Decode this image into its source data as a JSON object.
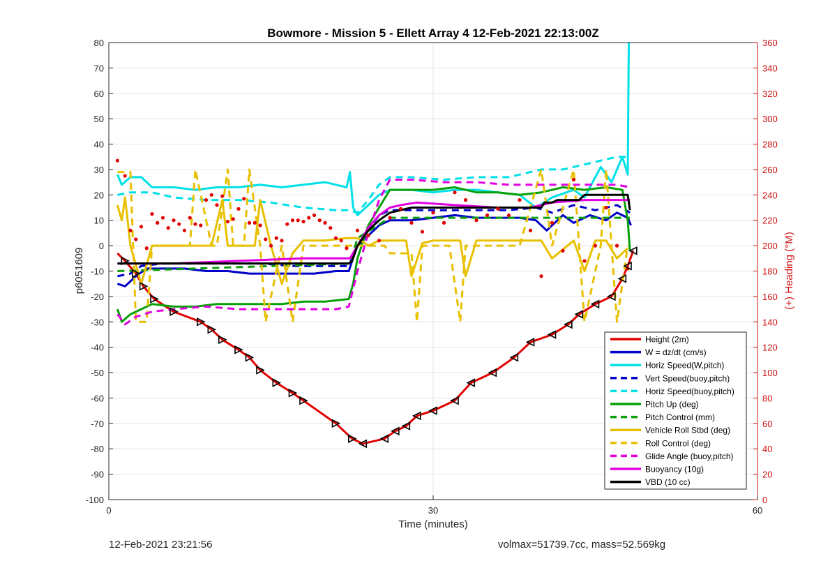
{
  "chart_data": {
    "type": "line",
    "title": "Bowmore - Mission 5 - Ellett Array 4 12-Feb-2021 22:13:00Z",
    "xlabel": "Time (minutes)",
    "ylabel": "p6051609",
    "ylabel_right": "(+) Heading (°M)",
    "xlim": [
      0,
      60
    ],
    "ylim": [
      -100,
      80
    ],
    "ylim_right": [
      0,
      360
    ],
    "xticks": [
      0,
      30,
      60
    ],
    "yticks": [
      80,
      70,
      60,
      50,
      40,
      30,
      20,
      10,
      0,
      -10,
      -20,
      -30,
      -40,
      -50,
      -60,
      -70,
      -80,
      -90,
      -100
    ],
    "yticks_right": [
      360,
      340,
      320,
      300,
      280,
      260,
      240,
      220,
      200,
      180,
      160,
      140,
      120,
      100,
      80,
      60,
      40,
      20,
      0
    ],
    "grid": true,
    "legend_position": "bottom-right",
    "colors": {
      "red": "#e00000",
      "blue": "#0000c8",
      "cyan": "#00e0e8",
      "green": "#08a008",
      "yellow": "#e8c000",
      "magenta": "#e000e0",
      "black": "#000000",
      "axis_right": "#d01010"
    },
    "series": [
      {
        "name": "Height (2m)",
        "color": "#e00000",
        "style": "solid",
        "marker": "triangle",
        "x": [
          0.8,
          1.5,
          2.5,
          3.2,
          4.2,
          6.0,
          8.5,
          9.5,
          10.5,
          12.0,
          13.0,
          14.0,
          15.5,
          17.0,
          18.0,
          21.0,
          22.5,
          23.5,
          25.5,
          26.5,
          27.5,
          28.5,
          30.0,
          32.0,
          33.5,
          35.5,
          37.5,
          39.0,
          41.0,
          42.5,
          43.5,
          45.0,
          46.5,
          47.5,
          48.0,
          48.5
        ],
        "y": [
          -3,
          -6,
          -11,
          -16,
          -21,
          -26,
          -30,
          -33,
          -37,
          -41,
          -44,
          -49,
          -54,
          -58,
          -61,
          -70,
          -76,
          -78,
          -76,
          -73,
          -71,
          -67,
          -65,
          -61,
          -54,
          -50,
          -44,
          -38,
          -35,
          -31,
          -27,
          -23,
          -20,
          -13,
          -8,
          -2
        ]
      },
      {
        "name": "W = dz/dt (cm/s)",
        "color": "#0000c8",
        "style": "solid",
        "x": [
          0.8,
          1.5,
          2.5,
          3.5,
          5.0,
          7.0,
          9.0,
          11.0,
          13.0,
          15.0,
          17.0,
          19.0,
          21.0,
          22.2,
          22.5,
          23.0,
          24.0,
          25.0,
          26.0,
          28.0,
          30.0,
          32.0,
          34.0,
          36.0,
          38.0,
          39.5,
          40.5,
          42.0,
          43.0,
          44.5,
          46.0,
          47.0,
          48.0,
          48.3
        ],
        "y": [
          -15,
          -16,
          -12,
          -9,
          -9,
          -9,
          -10,
          -10,
          -11,
          -11,
          -11,
          -11,
          -10,
          -10,
          -6,
          0,
          4,
          8,
          10,
          10,
          11,
          12,
          11,
          11,
          11,
          10,
          6,
          12,
          9,
          12,
          10,
          13,
          11,
          8
        ]
      },
      {
        "name": "Horiz Speed(W,pitch)",
        "color": "#00e0e8",
        "style": "solid",
        "x": [
          0.8,
          1.2,
          2.0,
          3.0,
          4.0,
          6.0,
          8.0,
          10.0,
          12.0,
          14.0,
          16.0,
          18.0,
          20.0,
          22.0,
          22.3,
          22.6,
          23.0,
          24.0,
          25.0,
          26.0,
          28.0,
          30.0,
          32.0,
          34.0,
          36.0,
          38.0,
          39.5,
          41.0,
          43.0,
          44.0,
          45.5,
          46.5,
          47.5,
          48.0,
          48.1
        ],
        "y": [
          28,
          24,
          27,
          27,
          23,
          23,
          22,
          23,
          23,
          24,
          23,
          24,
          25,
          23,
          29,
          15,
          12,
          16,
          20,
          22,
          22,
          21,
          22,
          22,
          21,
          20,
          15,
          19,
          22,
          19,
          31,
          25,
          35,
          28,
          80
        ]
      },
      {
        "name": "Vert Speed(buoy,pitch)",
        "color": "#0000c8",
        "style": "dash",
        "x": [
          0.8,
          2.0,
          3.0,
          5.0,
          8.0,
          11.0,
          14.0,
          17.0,
          20.0,
          22.2,
          23.0,
          24.0,
          25.0,
          26.0,
          28.0,
          31.0,
          34.0,
          37.0,
          39.5,
          41.0,
          43.0,
          45.0,
          47.0,
          48.2
        ],
        "y": [
          -12,
          -11,
          -8,
          -7,
          -7,
          -7,
          -7,
          -8,
          -8,
          -8,
          0,
          6,
          12,
          14,
          14,
          14,
          14,
          14,
          15,
          13,
          16,
          14,
          16,
          13
        ]
      },
      {
        "name": "Horiz Speed(buoy,pitch)",
        "color": "#00e0e8",
        "style": "dash",
        "x": [
          0.8,
          2.0,
          4.0,
          6.0,
          9.0,
          12.0,
          15.0,
          18.0,
          21.0,
          22.2,
          23.0,
          24.0,
          25.0,
          26.0,
          28.0,
          31.0,
          34.0,
          37.0,
          40.0,
          42.0,
          44.0,
          46.0,
          47.0,
          48.0
        ],
        "y": [
          20,
          21,
          21,
          19,
          18,
          18,
          17,
          15,
          14,
          14,
          13,
          18,
          24,
          27,
          27,
          26,
          27,
          27,
          30,
          30,
          32,
          34,
          35,
          35
        ]
      },
      {
        "name": "Pitch Up (deg)",
        "color": "#08a008",
        "style": "solid",
        "x": [
          0.8,
          1.2,
          2.0,
          3.0,
          4.0,
          6.0,
          8.0,
          10.0,
          12.0,
          14.0,
          16.0,
          18.0,
          20.0,
          22.2,
          22.6,
          23.0,
          24.0,
          25.0,
          26.0,
          28.0,
          30.0,
          32.0,
          34.0,
          36.0,
          38.0,
          40.0,
          42.0,
          44.0,
          46.0,
          47.5,
          48.0,
          48.2
        ],
        "y": [
          -25,
          -30,
          -27,
          -25,
          -23,
          -24,
          -24,
          -23,
          -23,
          -23,
          -23,
          -22,
          -22,
          -21,
          -15,
          -5,
          8,
          15,
          22,
          22,
          22,
          23,
          21,
          21,
          20,
          21,
          23,
          22,
          23,
          22,
          10,
          -2
        ]
      },
      {
        "name": "Pitch Control (mm)",
        "color": "#08a008",
        "style": "dash",
        "x": [
          0.8,
          22.3,
          23.0,
          26.0,
          48.2
        ],
        "y": [
          -10,
          -7,
          3,
          11,
          11
        ]
      },
      {
        "name": "Vehicle Roll Stbd (deg)",
        "color": "#e8c000",
        "style": "solid",
        "x": [
          0.8,
          1.2,
          1.5,
          2.0,
          3.0,
          4.0,
          6.0,
          8.0,
          9.5,
          10.5,
          11.0,
          12.0,
          13.5,
          14.0,
          15.0,
          16.0,
          17.0,
          18.0,
          20.0,
          22.0,
          23.0,
          24.0,
          25.0,
          27.5,
          28.0,
          29.0,
          30.0,
          32.5,
          33.0,
          34.0,
          35.0,
          38.0,
          40.0,
          41.0,
          43.0,
          44.0,
          45.0,
          46.0,
          47.0,
          48.0
        ],
        "y": [
          16,
          10,
          19,
          0,
          -15,
          0,
          0,
          0,
          0,
          18,
          0,
          0,
          0,
          18,
          0,
          -15,
          -3,
          2,
          2,
          3,
          3,
          0,
          2,
          2,
          -12,
          1,
          2,
          2,
          -12,
          2,
          2,
          2,
          2,
          -5,
          2,
          -10,
          2,
          2,
          -5,
          -1
        ]
      },
      {
        "name": "Roll Control (deg)",
        "color": "#e8c000",
        "style": "dash",
        "x": [
          0.8,
          2.0,
          2.5,
          3.5,
          4.0,
          7.5,
          8.0,
          9.5,
          10.0,
          11.0,
          11.5,
          12.5,
          13.0,
          14.0,
          14.5,
          16.0,
          17.0,
          18.0,
          22.0,
          24.0,
          25.5,
          26.0,
          28.0,
          28.5,
          29.0,
          31.0,
          31.5,
          32.5,
          33.0,
          34.0,
          38.0,
          40.0,
          41.0,
          43.0,
          44.0,
          45.5,
          46.0,
          47.0,
          48.0
        ],
        "y": [
          29,
          29,
          -30,
          -30,
          0,
          0,
          30,
          0,
          0,
          30,
          0,
          0,
          30,
          0,
          -30,
          0,
          -30,
          0,
          0,
          0,
          0,
          -3,
          -3,
          -30,
          0,
          0,
          0,
          -30,
          0,
          0,
          0,
          30,
          0,
          30,
          -30,
          0,
          30,
          -30,
          0
        ]
      },
      {
        "name": "Glide Angle (buoy,pitch)",
        "color": "#e000e0",
        "style": "dash",
        "x": [
          0.8,
          1.5,
          2.5,
          4.0,
          6.0,
          9.0,
          12.0,
          15.0,
          18.0,
          21.0,
          22.2,
          23.0,
          24.0,
          25.0,
          26.0,
          28.0,
          31.0,
          34.0,
          37.0,
          40.0,
          43.0,
          45.0,
          47.0,
          48.2
        ],
        "y": [
          -27,
          -31,
          -28,
          -26,
          -25,
          -24,
          -25,
          -25,
          -25,
          -25,
          -24,
          -10,
          5,
          18,
          26,
          26,
          25,
          25,
          24,
          24,
          24,
          24,
          24,
          23
        ]
      },
      {
        "name": "Buoyancy (10g)",
        "color": "#e000e0",
        "style": "solid",
        "x": [
          0.8,
          6.0,
          12.0,
          18.0,
          22.3,
          23.0,
          24.0,
          25.0,
          26.0,
          27.0,
          28.5,
          32.0,
          36.0,
          39.0,
          40.0,
          41.0,
          44.0,
          48.2
        ],
        "y": [
          -7,
          -7,
          -6,
          -5,
          -5,
          0,
          7,
          12,
          15,
          16,
          17,
          16,
          15,
          15,
          16,
          17,
          18,
          18
        ]
      },
      {
        "name": "VBD (10 cc)",
        "color": "#000000",
        "style": "solid",
        "x": [
          0.8,
          22.2,
          22.5,
          23.0,
          24.0,
          25.0,
          26.0,
          27.0,
          28.0,
          30.0,
          34.0,
          38.0,
          40.0,
          40.3,
          41.0,
          41.5,
          43.5,
          44.0,
          48.0,
          48.2
        ],
        "y": [
          -7,
          -7,
          -6,
          0,
          6,
          10,
          13,
          14,
          15,
          15,
          15,
          15,
          15,
          17,
          17,
          18,
          18,
          20,
          20,
          14
        ]
      },
      {
        "name": "Heading",
        "color": "#e00000",
        "style": "dots",
        "axis": "right",
        "x": [
          0.8,
          1.5,
          2.0,
          2.5,
          3.0,
          3.5,
          4.0,
          4.5,
          5.0,
          5.5,
          6.0,
          6.5,
          7.0,
          7.5,
          8.0,
          8.5,
          9.0,
          9.5,
          10.0,
          10.5,
          11.0,
          11.5,
          12.0,
          12.5,
          13.0,
          13.5,
          14.0,
          14.5,
          15.0,
          15.5,
          16.0,
          16.5,
          17.0,
          17.5,
          18.0,
          18.5,
          19.0,
          19.5,
          20.0,
          20.5,
          21.0,
          21.5,
          22.0,
          23.0,
          24.0,
          25.0,
          26.0,
          27.0,
          28.0,
          29.0,
          30.0,
          31.0,
          32.0,
          33.0,
          34.0,
          35.0,
          36.0,
          37.0,
          38.0,
          39.0,
          40.0,
          41.0,
          42.0,
          43.0,
          44.0,
          45.0,
          46.0,
          47.0,
          48.0
        ],
        "y": [
          267,
          255,
          212,
          205,
          215,
          198,
          225,
          218,
          222,
          214,
          220,
          217,
          212,
          222,
          217,
          216,
          236,
          240,
          232,
          239,
          219,
          221,
          229,
          237,
          218,
          218,
          216,
          205,
          200,
          206,
          204,
          217,
          220,
          220,
          219,
          222,
          224,
          220,
          218,
          214,
          206,
          204,
          198,
          212,
          208,
          204,
          222,
          229,
          218,
          211,
          226,
          218,
          242,
          236,
          220,
          224,
          229,
          224,
          236,
          212,
          176,
          218,
          196,
          252,
          188,
          200,
          230,
          200,
          182
        ]
      }
    ],
    "footer_left": "12-Feb-2021 23:21:56",
    "footer_right": "volmax=51739.7cc, mass=52.569kg"
  }
}
